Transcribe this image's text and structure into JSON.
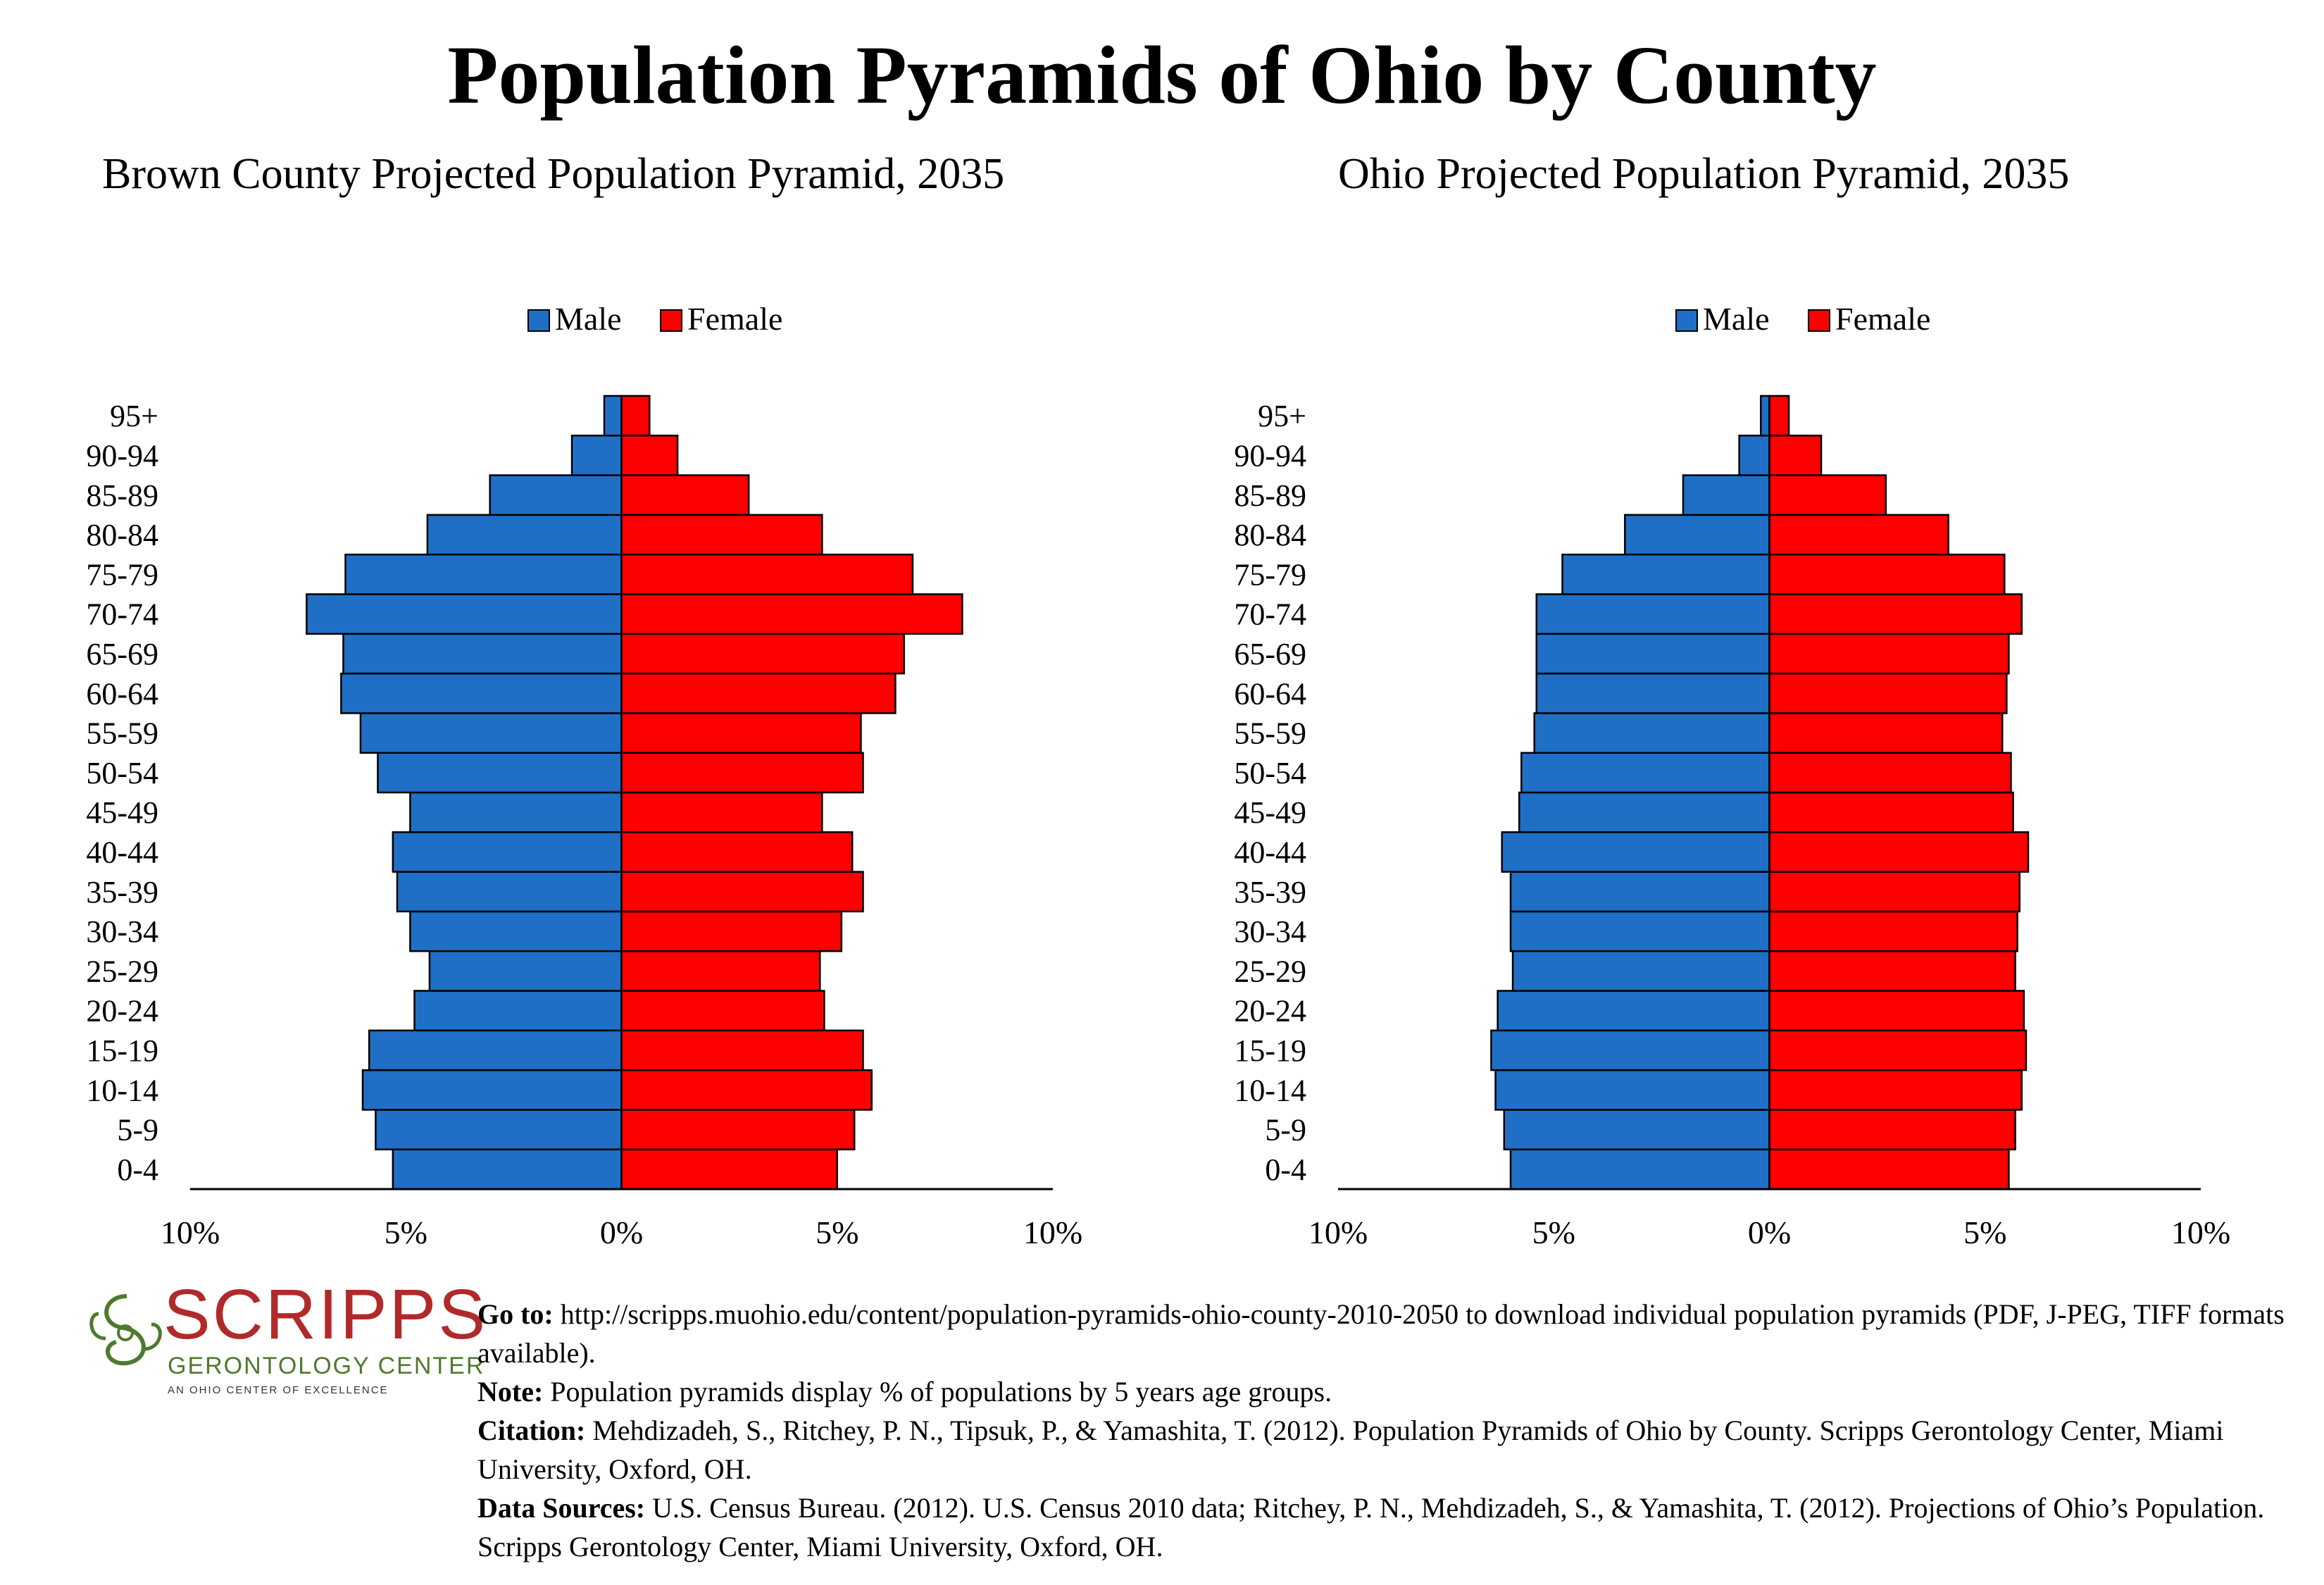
{
  "title": "Population Pyramids of Ohio by County",
  "legend": {
    "male": "Male",
    "female": "Female"
  },
  "colors": {
    "male": "#1f6fc6",
    "female": "#ff0000",
    "outline": "#000000"
  },
  "chart_data": [
    {
      "type": "bar",
      "orientation": "horizontal-pyramid",
      "title": "Brown County Projected Population Pyramid, 2035",
      "categories": [
        "0-4",
        "5-9",
        "10-14",
        "15-19",
        "20-24",
        "25-29",
        "30-34",
        "35-39",
        "40-44",
        "45-49",
        "50-54",
        "55-59",
        "60-64",
        "65-69",
        "70-74",
        "75-79",
        "80-84",
        "85-89",
        "90-94",
        "95+"
      ],
      "series": [
        {
          "name": "Male",
          "values": [
            5.3,
            5.7,
            6.0,
            5.85,
            4.8,
            4.45,
            4.9,
            5.2,
            5.3,
            4.9,
            5.65,
            6.05,
            6.5,
            6.45,
            7.3,
            6.4,
            4.5,
            3.05,
            1.15,
            0.4
          ]
        },
        {
          "name": "Female",
          "values": [
            5.0,
            5.4,
            5.8,
            5.6,
            4.7,
            4.6,
            5.1,
            5.6,
            5.35,
            4.65,
            5.6,
            5.55,
            6.35,
            6.55,
            7.9,
            6.75,
            4.65,
            2.95,
            1.3,
            0.65
          ]
        }
      ],
      "x_tick_labels": [
        "10%",
        "5%",
        "0%",
        "5%",
        "10%"
      ],
      "xlim": [
        -10,
        10
      ],
      "legend_position": "top-center",
      "grid": false
    },
    {
      "type": "bar",
      "orientation": "horizontal-pyramid",
      "title": "Ohio Projected Population Pyramid, 2035",
      "categories": [
        "0-4",
        "5-9",
        "10-14",
        "15-19",
        "20-24",
        "25-29",
        "30-34",
        "35-39",
        "40-44",
        "45-49",
        "50-54",
        "55-59",
        "60-64",
        "65-69",
        "70-74",
        "75-79",
        "80-84",
        "85-89",
        "90-94",
        "95+"
      ],
      "series": [
        {
          "name": "Male",
          "values": [
            6.0,
            6.15,
            6.35,
            6.45,
            6.3,
            5.95,
            6.0,
            6.0,
            6.2,
            5.8,
            5.75,
            5.45,
            5.4,
            5.4,
            5.4,
            4.8,
            3.35,
            2.0,
            0.7,
            0.2
          ]
        },
        {
          "name": "Female",
          "values": [
            5.55,
            5.7,
            5.85,
            5.95,
            5.9,
            5.7,
            5.75,
            5.8,
            6.0,
            5.65,
            5.6,
            5.4,
            5.5,
            5.55,
            5.85,
            5.45,
            4.15,
            2.7,
            1.2,
            0.45
          ]
        }
      ],
      "x_tick_labels": [
        "10%",
        "5%",
        "0%",
        "5%",
        "10%"
      ],
      "xlim": [
        -10,
        10
      ],
      "legend_position": "top-center",
      "grid": false
    }
  ],
  "footer": {
    "logo": {
      "name": "SCRIPPS",
      "subtitle": "GERONTOLOGY CENTER",
      "tagline": "AN OHIO CENTER OF EXCELLENCE"
    },
    "goto_label": "Go to:",
    "goto_text": "http://scripps.muohio.edu/content/population-pyramids-ohio-county-2010-2050 to download individual population pyramids (PDF, J-PEG, TIFF formats available).",
    "note_label": "Note:",
    "note_text": "Population pyramids display % of populations by 5 years age groups.",
    "citation_label": "Citation:",
    "citation_text": "Mehdizadeh, S., Ritchey, P. N., Tipsuk, P., & Yamashita, T. (2012). Population Pyramids of Ohio by County. Scripps Gerontology Center, Miami University, Oxford, OH.",
    "sources_label": "Data Sources:",
    "sources_text": "U.S. Census Bureau. (2012). U.S. Census 2010 data; Ritchey, P. N., Mehdizadeh, S., & Yamashita, T. (2012). Projections of Ohio’s Population. Scripps Gerontology Center, Miami University, Oxford, OH."
  }
}
